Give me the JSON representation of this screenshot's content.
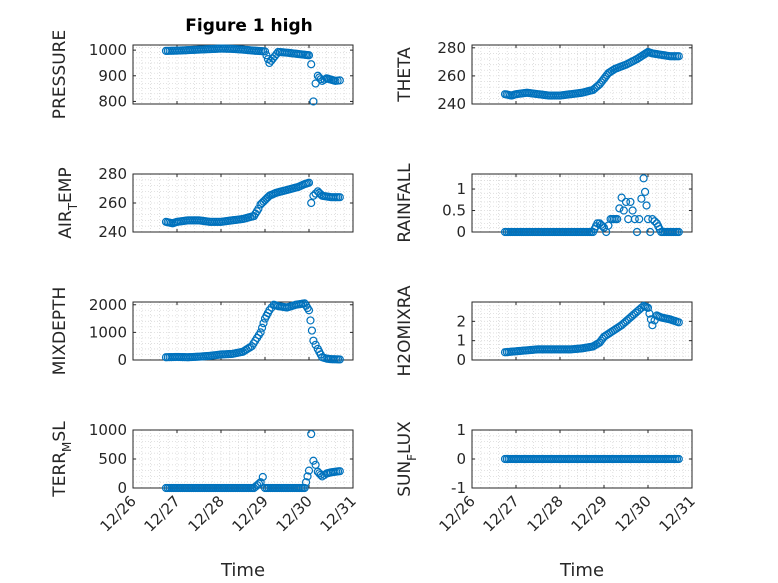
{
  "figure": {
    "title": "Figure 1 high"
  },
  "colors": {
    "marker": "#0072BD",
    "axis": "#262626",
    "grid": "#d9d9d9",
    "bg": "#ffffff"
  },
  "chart_data": [
    {
      "type": "scatter",
      "ylabel": "PRESSURE",
      "title": "Figure 1 high",
      "xlim": [
        26,
        31
      ],
      "ylim": [
        790,
        1020
      ],
      "yticks": [
        800,
        900,
        1000
      ],
      "yticklabels": [
        "800",
        "900",
        "1000"
      ],
      "xticklabels": [],
      "grid": true,
      "series": [
        {
          "x": [
            26.75,
            27.0,
            27.25,
            27.5,
            27.75,
            28.0,
            28.25,
            28.5,
            28.75,
            29.0,
            29.1,
            29.3,
            29.5,
            29.75,
            29.9,
            30.0,
            30.05,
            30.1,
            30.15,
            30.2,
            30.3,
            30.4,
            30.5,
            30.6,
            30.7
          ],
          "y": [
            997,
            998,
            1000,
            1002,
            1004,
            1006,
            1005,
            1002,
            998,
            995,
            950,
            993,
            990,
            985,
            982,
            980,
            945,
            800,
            870,
            900,
            880,
            890,
            885,
            880,
            882
          ]
        }
      ]
    },
    {
      "type": "scatter",
      "ylabel": "THETA",
      "xlim": [
        26,
        31
      ],
      "ylim": [
        240,
        282
      ],
      "yticks": [
        240,
        260,
        280
      ],
      "yticklabels": [
        "240",
        "260",
        "280"
      ],
      "xticklabels": [],
      "grid": true,
      "series": [
        {
          "x": [
            26.75,
            26.9,
            27.0,
            27.25,
            27.5,
            27.75,
            28.0,
            28.25,
            28.5,
            28.75,
            28.9,
            29.0,
            29.1,
            29.25,
            29.5,
            29.75,
            29.9,
            30.0,
            30.1,
            30.3,
            30.5,
            30.7
          ],
          "y": [
            247,
            246,
            247,
            248,
            247,
            246,
            246,
            247,
            248,
            250,
            254,
            258,
            262,
            265,
            268,
            272,
            275,
            277,
            276,
            275,
            274,
            274
          ]
        }
      ]
    },
    {
      "type": "scatter",
      "ylabel": "AIR_TEMP",
      "ylabel_main": "AIR",
      "ylabel_sub": "T",
      "ylabel_rest": "EMP",
      "xlim": [
        26,
        31
      ],
      "ylim": [
        240,
        280
      ],
      "yticks": [
        240,
        260,
        280
      ],
      "yticklabels": [
        "240",
        "260",
        "280"
      ],
      "xticklabels": [],
      "grid": true,
      "series": [
        {
          "x": [
            26.75,
            26.9,
            27.0,
            27.25,
            27.5,
            27.75,
            28.0,
            28.25,
            28.5,
            28.75,
            28.85,
            28.9,
            29.0,
            29.1,
            29.25,
            29.5,
            29.75,
            29.9,
            30.0,
            30.05,
            30.1,
            30.2,
            30.3,
            30.5,
            30.7
          ],
          "y": [
            247,
            246,
            247,
            248,
            248,
            247,
            247,
            248,
            249,
            251,
            256,
            259,
            262,
            265,
            267,
            269,
            271,
            273,
            274,
            260,
            265,
            268,
            265,
            264,
            264
          ]
        }
      ]
    },
    {
      "type": "scatter",
      "ylabel": "RAINFALL",
      "xlim": [
        26,
        31
      ],
      "ylim": [
        0,
        1.35
      ],
      "yticks": [
        0,
        0.5,
        1
      ],
      "yticklabels": [
        "0",
        "0.5",
        "1"
      ],
      "xticklabels": [],
      "grid": true,
      "series": [
        {
          "x": [
            26.75,
            27.0,
            27.25,
            27.5,
            27.75,
            28.0,
            28.25,
            28.5,
            28.75,
            28.85,
            28.9,
            29.0,
            29.05,
            29.15,
            29.3,
            29.4,
            29.45,
            29.5,
            29.55,
            29.6,
            29.7,
            29.75,
            29.8,
            29.9,
            30.0,
            30.05,
            30.1,
            30.2,
            30.3,
            30.5,
            30.7
          ],
          "y": [
            0,
            0,
            0,
            0,
            0,
            0,
            0,
            0,
            0,
            0.2,
            0.2,
            0.1,
            0,
            0.3,
            0.3,
            0.8,
            0.5,
            0.7,
            0.3,
            0.7,
            0.3,
            0,
            0.3,
            1.25,
            0.3,
            0,
            0.3,
            0.2,
            0,
            0,
            0
          ]
        }
      ]
    },
    {
      "type": "scatter",
      "ylabel": "MIXDEPTH",
      "xlim": [
        26,
        31
      ],
      "ylim": [
        0,
        2100
      ],
      "yticks": [
        0,
        1000,
        2000
      ],
      "yticklabels": [
        "0",
        "1000",
        "2000"
      ],
      "xticklabels": [],
      "grid": true,
      "series": [
        {
          "x": [
            26.75,
            27.0,
            27.25,
            27.5,
            27.75,
            28.0,
            28.25,
            28.5,
            28.7,
            28.9,
            29.0,
            29.1,
            29.2,
            29.3,
            29.5,
            29.7,
            29.9,
            30.0,
            30.1,
            30.2,
            30.3,
            30.4,
            30.5,
            30.7
          ],
          "y": [
            100,
            110,
            100,
            120,
            150,
            200,
            220,
            300,
            500,
            1000,
            1500,
            1800,
            2000,
            1950,
            1900,
            2000,
            2050,
            1800,
            700,
            400,
            100,
            50,
            30,
            20
          ]
        }
      ]
    },
    {
      "type": "scatter",
      "ylabel": "H2OMIXRA",
      "xlim": [
        26,
        31
      ],
      "ylim": [
        0,
        3
      ],
      "yticks": [
        0,
        1,
        2
      ],
      "yticklabels": [
        "0",
        "1",
        "2"
      ],
      "xticklabels": [],
      "grid": true,
      "series": [
        {
          "x": [
            26.75,
            27.0,
            27.25,
            27.5,
            27.75,
            28.0,
            28.25,
            28.5,
            28.75,
            28.9,
            29.0,
            29.2,
            29.4,
            29.6,
            29.8,
            29.9,
            30.0,
            30.1,
            30.2,
            30.3,
            30.5,
            30.7
          ],
          "y": [
            0.4,
            0.45,
            0.5,
            0.55,
            0.55,
            0.55,
            0.55,
            0.6,
            0.7,
            0.9,
            1.2,
            1.5,
            1.8,
            2.2,
            2.6,
            2.8,
            2.7,
            1.8,
            2.3,
            2.2,
            2.1,
            1.95
          ]
        }
      ]
    },
    {
      "type": "scatter",
      "ylabel": "TERR_MSL",
      "ylabel_main": "TERR",
      "ylabel_sub": "M",
      "ylabel_rest": "SL",
      "xlim": [
        26,
        31
      ],
      "ylim": [
        0,
        1000
      ],
      "yticks": [
        0,
        500,
        1000
      ],
      "yticklabels": [
        "0",
        "500",
        "1000"
      ],
      "xticklabels": [
        "12/26",
        "12/27",
        "12/28",
        "12/29",
        "12/30",
        "12/31"
      ],
      "xticks": [
        26,
        27,
        28,
        29,
        30,
        31
      ],
      "xlabel": "Time",
      "grid": true,
      "series": [
        {
          "x": [
            26.75,
            27.0,
            27.25,
            27.5,
            27.75,
            28.0,
            28.25,
            28.5,
            28.75,
            28.9,
            28.95,
            29.0,
            29.25,
            29.5,
            29.75,
            29.9,
            30.0,
            30.05,
            30.1,
            30.15,
            30.2,
            30.3,
            30.4,
            30.5,
            30.7
          ],
          "y": [
            0,
            0,
            0,
            0,
            0,
            0,
            0,
            0,
            0,
            100,
            190,
            0,
            0,
            0,
            0,
            0,
            300,
            930,
            470,
            400,
            280,
            200,
            250,
            270,
            290
          ]
        }
      ]
    },
    {
      "type": "scatter",
      "ylabel": "SUN_FLUX",
      "ylabel_main": "SUN",
      "ylabel_sub": "F",
      "ylabel_rest": "LUX",
      "xlim": [
        26,
        31
      ],
      "ylim": [
        -1,
        1
      ],
      "yticks": [
        -1,
        0,
        1
      ],
      "yticklabels": [
        "-1",
        "0",
        "1"
      ],
      "xticklabels": [
        "12/26",
        "12/27",
        "12/28",
        "12/29",
        "12/30",
        "12/31"
      ],
      "xticks": [
        26,
        27,
        28,
        29,
        30,
        31
      ],
      "xlabel": "Time",
      "grid": true,
      "series": [
        {
          "x": [
            26.75,
            27.0,
            27.25,
            27.5,
            27.75,
            28.0,
            28.25,
            28.5,
            28.75,
            29.0,
            29.25,
            29.5,
            29.75,
            30.0,
            30.25,
            30.5,
            30.7
          ],
          "y": [
            0,
            0,
            0,
            0,
            0,
            0,
            0,
            0,
            0,
            0,
            0,
            0,
            0,
            0,
            0,
            0,
            0
          ]
        }
      ]
    }
  ]
}
